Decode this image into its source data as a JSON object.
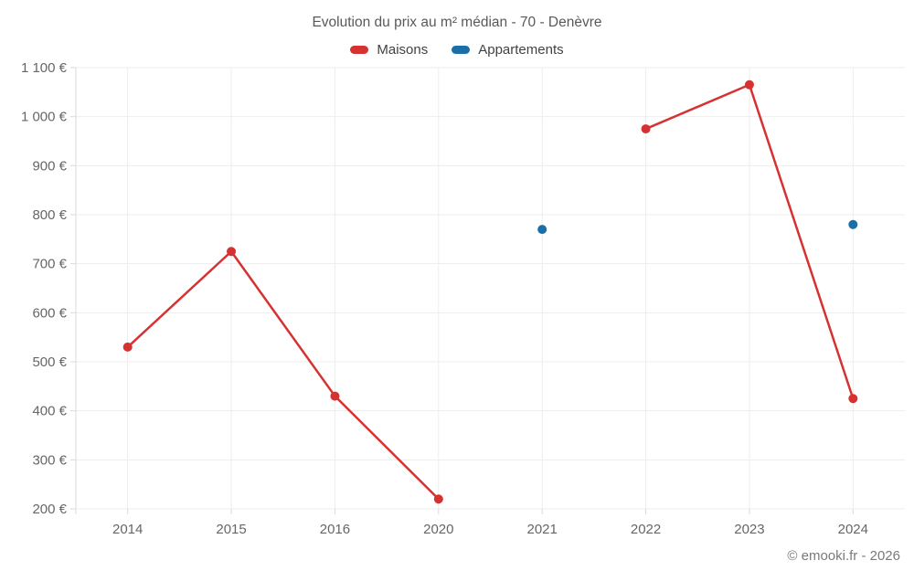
{
  "chart_data": {
    "type": "line",
    "title": "Evolution du prix au m² médian - 70 - Denèvre",
    "xlabel": "",
    "ylabel": "",
    "categories": [
      "2014",
      "2015",
      "2016",
      "2020",
      "2021",
      "2022",
      "2023",
      "2024"
    ],
    "series": [
      {
        "name": "Maisons",
        "color": "#d53231",
        "values": [
          530,
          725,
          430,
          220,
          null,
          975,
          1065,
          425
        ]
      },
      {
        "name": "Appartements",
        "color": "#1a6fa8",
        "values": [
          null,
          null,
          null,
          null,
          770,
          null,
          null,
          780
        ]
      }
    ],
    "ylim": [
      200,
      1100
    ],
    "y_ticks": [
      {
        "value": 200,
        "label": "200 €"
      },
      {
        "value": 300,
        "label": "300 €"
      },
      {
        "value": 400,
        "label": "400 €"
      },
      {
        "value": 500,
        "label": "500 €"
      },
      {
        "value": 600,
        "label": "600 €"
      },
      {
        "value": 700,
        "label": "700 €"
      },
      {
        "value": 800,
        "label": "800 €"
      },
      {
        "value": 900,
        "label": "900 €"
      },
      {
        "value": 1000,
        "label": "1 000 €"
      },
      {
        "value": 1100,
        "label": "1 100 €"
      }
    ],
    "grid": true,
    "legend_position": "top",
    "line_style": "solid",
    "markers": true,
    "missing_data_breaks_line": true
  },
  "footer": {
    "copyright": "© emooki.fr - 2026"
  }
}
